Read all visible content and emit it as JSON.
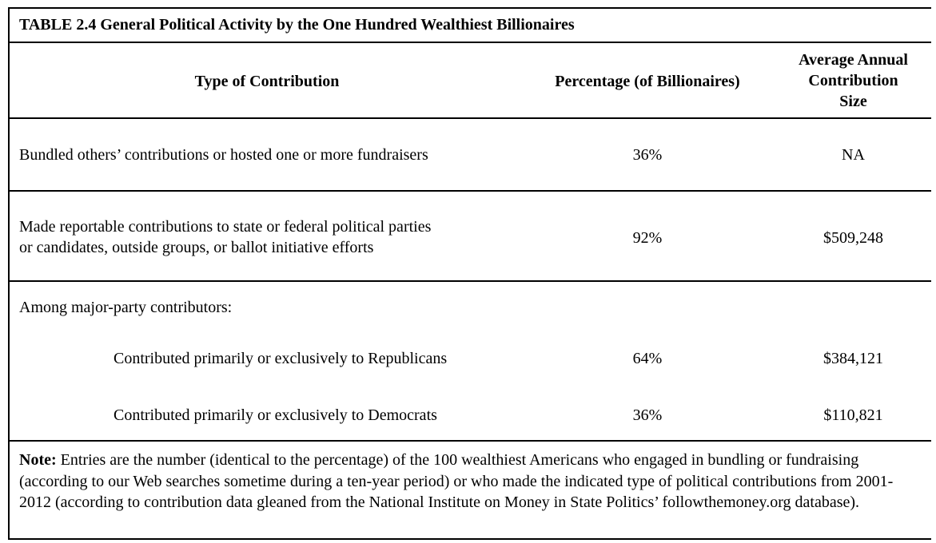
{
  "caption": "TABLE 2.4 General Political Activity by the One Hundred Wealthiest Billionaires",
  "headers": {
    "type": "Type of Contribution",
    "percentage": "Percentage (of Billionaires)",
    "avg_line1": "Average Annual",
    "avg_line2": "Contribution",
    "avg_line3": "Size"
  },
  "rows": [
    {
      "type": "Bundled others’ contributions or hosted one or more fundraisers",
      "percentage": "36%",
      "average": "NA"
    },
    {
      "type_line1": "Made reportable contributions to state or federal political parties",
      "type_line2": "or candidates, outside groups, or ballot initiative efforts",
      "percentage": "92%",
      "average": "$509,248"
    },
    {
      "type": "Among major-party contributors:"
    },
    {
      "type": "Contributed primarily or exclusively to Republicans",
      "percentage": "64%",
      "average": "$384,121"
    },
    {
      "type": "Contributed primarily or exclusively to Democrats",
      "percentage": "36%",
      "average": "$110,821"
    }
  ],
  "note": {
    "label": "Note:",
    "text": " Entries are the number (identical to the percentage) of the 100 wealthiest Americans who engaged in bundling or fundraising (according to our Web searches sometime during a ten-year period) or who made the indicated type of political contributions from 2001-2012 (according to contribution data gleaned from the National Institute on Money in State Politics’ followthemoney.org database)."
  }
}
